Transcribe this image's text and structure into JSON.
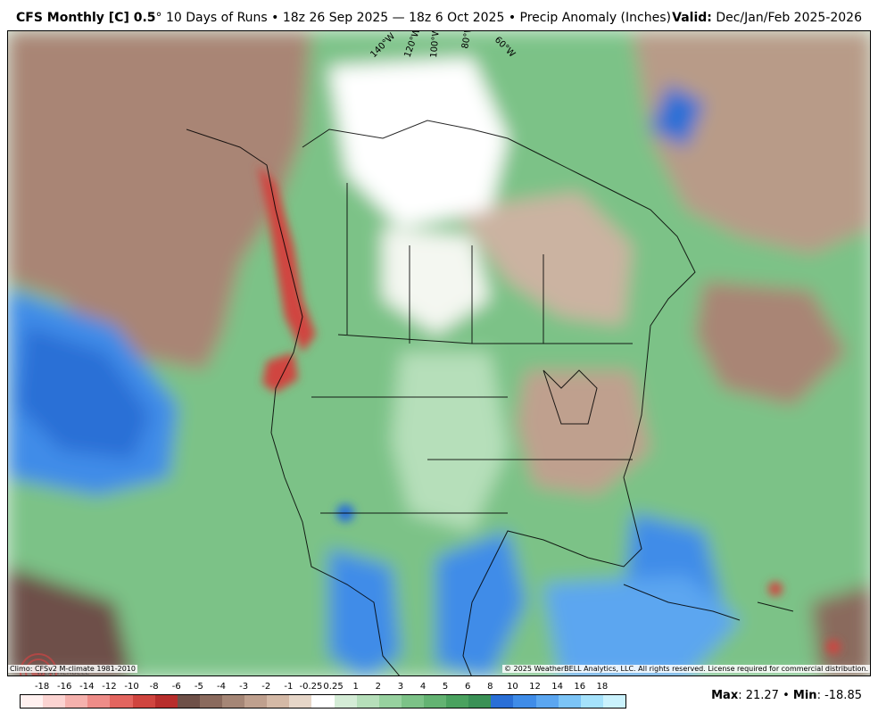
{
  "header": {
    "model": "CFS Monthly [C] 0.5",
    "degree": "°",
    "run_info": "10 Days of Runs • 18z 26 Sep 2025 — 18z 6 Oct 2025 • Precip Anomaly (Inches)",
    "valid_label": "Valid:",
    "valid_value": "Dec/Jan/Feb 2025-2026"
  },
  "map": {
    "longitude_labels": [
      "140°W",
      "120°W",
      "100°W",
      "80°W",
      "60°W"
    ],
    "logo_text": "WEATHERBELL"
  },
  "footer": {
    "climo": "Climo: CFSv2 M-climate 1981-2010",
    "copyright": "© 2025 WeatherBELL Analytics, LLC. All rights reserved. License required for commercial distribution."
  },
  "legend": {
    "ticks": [
      "-18",
      "-16",
      "-14",
      "-12",
      "-10",
      "-8",
      "-6",
      "-5",
      "-4",
      "-3",
      "-2",
      "-1",
      "-0.25",
      "0.25",
      "1",
      "2",
      "3",
      "4",
      "5",
      "6",
      "8",
      "10",
      "12",
      "14",
      "16",
      "18"
    ],
    "colors": [
      "#fff0ef",
      "#fbd3d1",
      "#f5b1ad",
      "#ee8c88",
      "#e3655f",
      "#d0453f",
      "#b82e2c",
      "#6e5048",
      "#8a6a5d",
      "#a58676",
      "#bfa08e",
      "#d4b9a6",
      "#e6d6c8",
      "#ffffff",
      "#d4ecd6",
      "#b6dfba",
      "#97d19f",
      "#7cc287",
      "#63b372",
      "#4aa25f",
      "#3a9156",
      "#2a6fd6",
      "#3f8ce8",
      "#5ba6f0",
      "#7cc4f6",
      "#a5e2fb",
      "#caf2fd"
    ]
  },
  "stats": {
    "max_label": "Max",
    "max_value": "21.27",
    "separator": "•",
    "min_label": "Min",
    "min_value": "-18.85"
  }
}
